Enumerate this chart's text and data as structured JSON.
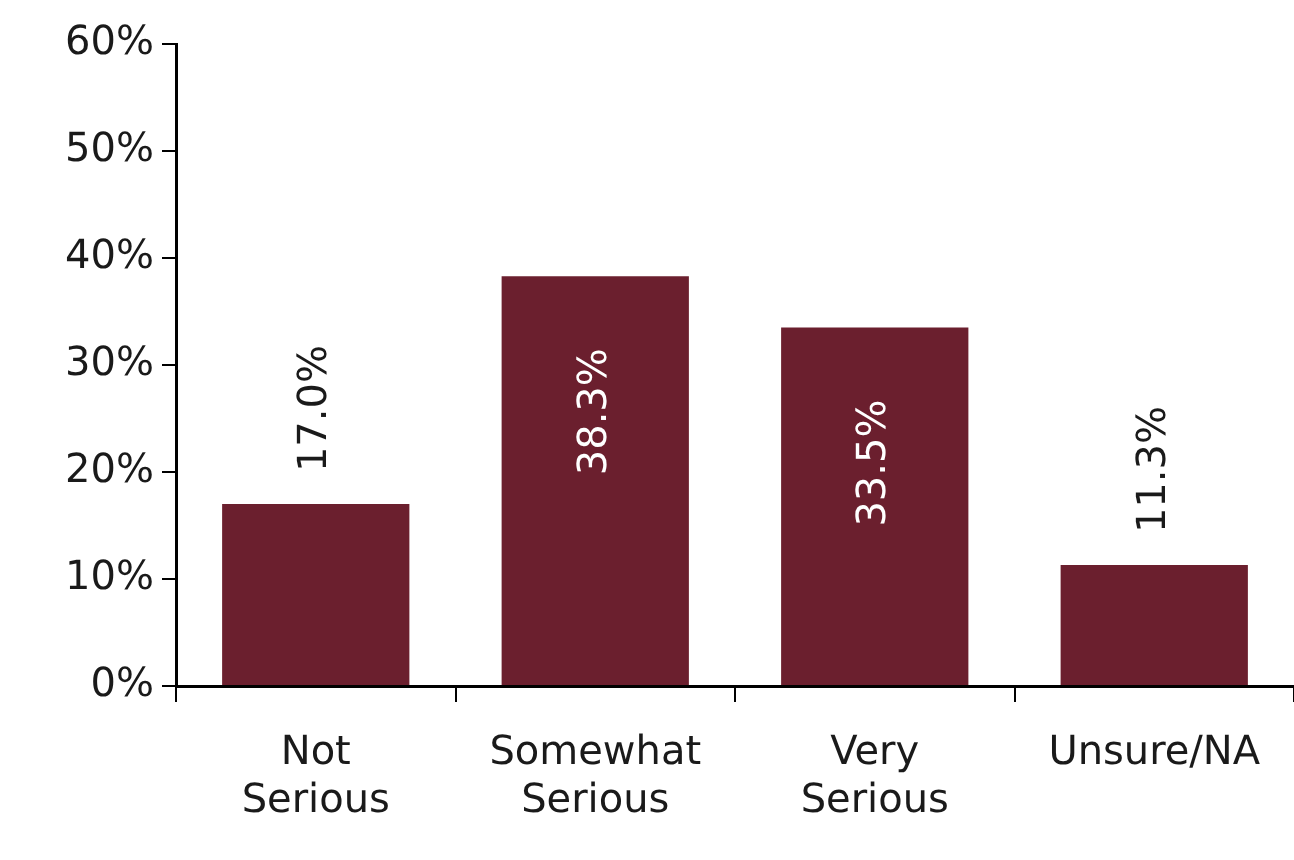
{
  "chart_data": {
    "type": "bar",
    "categories": [
      "Not Serious",
      "Somewhat Serious",
      "Very Serious",
      "Unsure/NA"
    ],
    "values": [
      17.0,
      38.3,
      33.5,
      11.3
    ],
    "value_labels": [
      "17.0%",
      "38.3%",
      "33.5%",
      "11.3%"
    ],
    "color": "#6b1f2e",
    "ylim": [
      0,
      60
    ],
    "yticks": [
      {
        "value": 0,
        "label": "0%"
      },
      {
        "value": 10,
        "label": "10%"
      },
      {
        "value": 20,
        "label": "20%"
      },
      {
        "value": 30,
        "label": "30%"
      },
      {
        "value": 40,
        "label": "40%"
      },
      {
        "value": 50,
        "label": "50%"
      },
      {
        "value": 60,
        "label": "60%"
      }
    ],
    "grid": false,
    "legend": false
  }
}
